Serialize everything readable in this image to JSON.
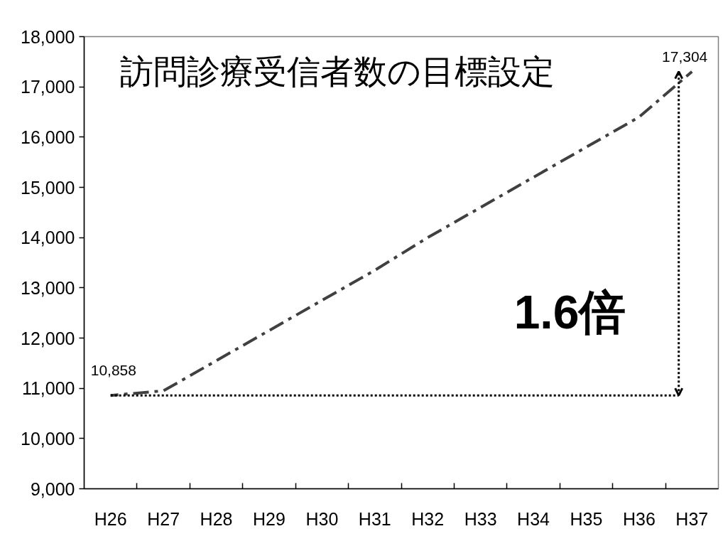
{
  "chart_data": {
    "type": "line",
    "title": "訪問診療受信者数の目標設定",
    "categories": [
      "H26",
      "H27",
      "H28",
      "H29",
      "H30",
      "H31",
      "H32",
      "H33",
      "H34",
      "H35",
      "H36",
      "H37"
    ],
    "series": [
      {
        "color": "#404040",
        "values": [
          10858,
          10950,
          11550,
          12150,
          12750,
          13350,
          14000,
          14600,
          15200,
          15800,
          16400,
          17304
        ],
        "value_labels": [
          "10,858",
          null,
          null,
          null,
          null,
          null,
          null,
          null,
          null,
          null,
          null,
          "17,304"
        ]
      }
    ],
    "ylim": [
      9000,
      18000
    ],
    "yticks": [
      {
        "value": 9000,
        "label": "9,000"
      },
      {
        "value": 10000,
        "label": "10,000"
      },
      {
        "value": 11000,
        "label": "11,000"
      },
      {
        "value": 12000,
        "label": "12,000"
      },
      {
        "value": 13000,
        "label": "13,000"
      },
      {
        "value": 14000,
        "label": "14,000"
      },
      {
        "value": 15000,
        "label": "15,000"
      },
      {
        "value": 16000,
        "label": "16,000"
      },
      {
        "value": 17000,
        "label": "17,000"
      },
      {
        "value": 18000,
        "label": "18,000"
      }
    ],
    "ref_lines": [
      {
        "axis": "y",
        "value": 10858,
        "color": "#000000",
        "line_style": "dotted"
      }
    ],
    "grid": false,
    "line_style": "dashed",
    "marker": "none",
    "annotations": [
      "1.6倍"
    ]
  }
}
